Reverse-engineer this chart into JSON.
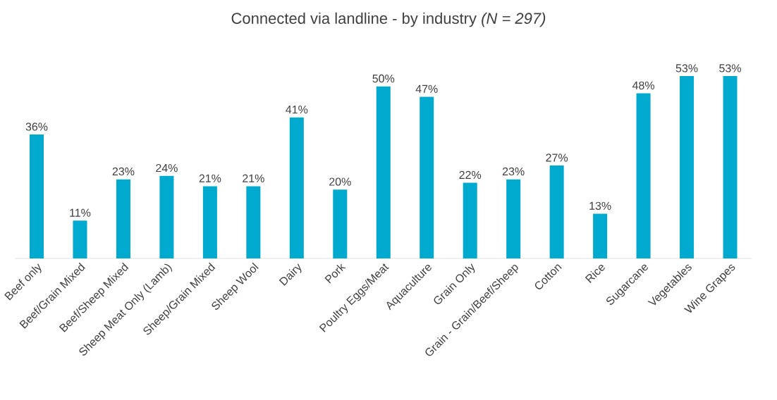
{
  "chart_data": {
    "type": "bar",
    "title": "Connected via landline - by industry *(N = 297)*",
    "categories": [
      "Beef only",
      "Beef/Grain Mixed",
      "Beef/Sheep Mixed",
      "Sheep Meat Only (Lamb)",
      "Sheep/Grain Mixed",
      "Sheep Wool",
      "Dairy",
      "Pork",
      "Poultry Eggs/Meat",
      "Aquaculture",
      "Grain Only",
      "Grain - Grain/Beef/Sheep",
      "Cotton",
      "Rice",
      "Sugarcane",
      "Vegetables",
      "Wine Grapes"
    ],
    "values": [
      36,
      11,
      23,
      24,
      21,
      21,
      41,
      20,
      50,
      47,
      22,
      23,
      27,
      13,
      48,
      53,
      53
    ],
    "value_labels": [
      "36%",
      "11%",
      "23%",
      "24%",
      "21%",
      "21%",
      "41%",
      "20%",
      "50%",
      "47%",
      "22%",
      "23%",
      "27%",
      "13%",
      "48%",
      "53%",
      "53%"
    ],
    "color": "#00a9ce",
    "tick_labels": "x",
    "grid": false
  }
}
